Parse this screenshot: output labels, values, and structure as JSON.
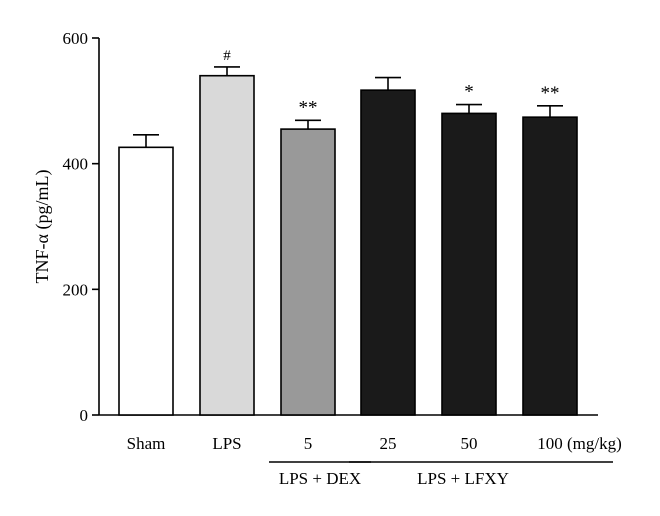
{
  "chart_data": {
    "type": "bar",
    "ylabel": "TNF-α (pg/mL)",
    "xlabel": "",
    "ylim": [
      0,
      600
    ],
    "yticks": [
      0,
      200,
      400,
      600
    ],
    "categories": [
      "Sham",
      "LPS",
      "5",
      "25",
      "50",
      "100"
    ],
    "unit_label": "(mg/kg)",
    "values": [
      426,
      540,
      455,
      517,
      480,
      474
    ],
    "errors": [
      20,
      14,
      14,
      20,
      14,
      18
    ],
    "significance": [
      "",
      "#",
      "**",
      "",
      "*",
      "**"
    ],
    "bar_colors": [
      "#ffffff",
      "#d9d9d9",
      "#999999",
      "#1a1a1a",
      "#1a1a1a",
      "#1a1a1a"
    ],
    "groups": [
      {
        "label": "LPS + DEX",
        "from": 2,
        "to": 2
      },
      {
        "label": "LPS + LFXY",
        "from": 3,
        "to": 5
      }
    ],
    "grid": false
  }
}
